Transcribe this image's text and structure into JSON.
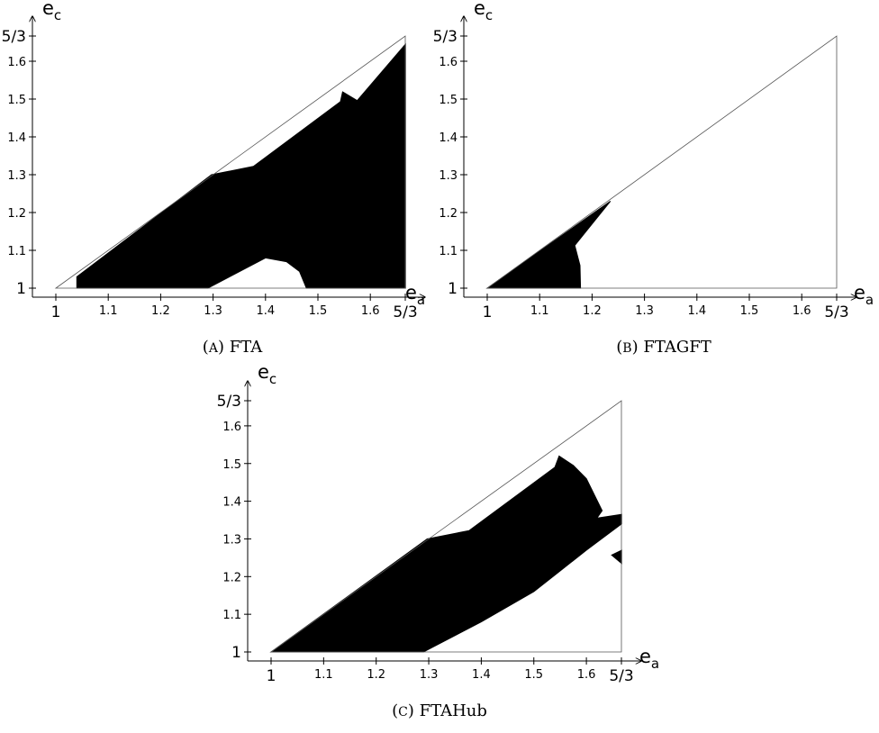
{
  "panels": [
    {
      "caption_letter": "A",
      "caption_name": "FTA",
      "x_axis_label": "e",
      "x_axis_sub": "a",
      "y_axis_label": "e",
      "y_axis_sub": "c",
      "x_ticks": [
        "1",
        "1.1",
        "1.2",
        "1.3",
        "1.4",
        "1.5",
        "1.6",
        "5/3"
      ],
      "y_ticks": [
        "1",
        "1.1",
        "1.2",
        "1.3",
        "1.4",
        "1.5",
        "1.6",
        "5/3"
      ],
      "regions": [
        [
          [
            1.04,
            1.0
          ],
          [
            1.04,
            1.03
          ],
          [
            1.297,
            1.3
          ],
          [
            1.377,
            1.322
          ],
          [
            1.543,
            1.493
          ],
          [
            1.547,
            1.519
          ],
          [
            1.575,
            1.496
          ],
          [
            1.667,
            1.645
          ],
          [
            1.667,
            1.0
          ],
          [
            1.478,
            1.0
          ],
          [
            1.465,
            1.044
          ],
          [
            1.44,
            1.07
          ],
          [
            1.4,
            1.08
          ],
          [
            1.29,
            1.0
          ]
        ]
      ]
    },
    {
      "caption_letter": "B",
      "caption_name": "FTAGFT",
      "x_axis_label": "e",
      "x_axis_sub": "a",
      "y_axis_label": "e",
      "y_axis_sub": "c",
      "x_ticks": [
        "1",
        "1.1",
        "1.2",
        "1.3",
        "1.4",
        "1.5",
        "1.6",
        "5/3"
      ],
      "y_ticks": [
        "1",
        "1.1",
        "1.2",
        "1.3",
        "1.4",
        "1.5",
        "1.6",
        "5/3"
      ],
      "regions": [
        [
          [
            1.0,
            1.0
          ],
          [
            1.235,
            1.23
          ],
          [
            1.167,
            1.113
          ],
          [
            1.177,
            1.06
          ],
          [
            1.178,
            1.0
          ]
        ]
      ]
    },
    {
      "caption_letter": "C",
      "caption_name": "FTAHub",
      "x_axis_label": "e",
      "x_axis_sub": "a",
      "y_axis_label": "e",
      "y_axis_sub": "c",
      "x_ticks": [
        "1",
        "1.1",
        "1.2",
        "1.3",
        "1.4",
        "1.5",
        "1.6",
        "5/3"
      ],
      "y_ticks": [
        "1",
        "1.1",
        "1.2",
        "1.3",
        "1.4",
        "1.5",
        "1.6",
        "5/3"
      ],
      "regions": [
        [
          [
            1.0,
            1.0
          ],
          [
            1.297,
            1.3
          ],
          [
            1.377,
            1.322
          ],
          [
            1.54,
            1.49
          ],
          [
            1.548,
            1.52
          ],
          [
            1.575,
            1.495
          ],
          [
            1.6,
            1.46
          ],
          [
            1.63,
            1.375
          ],
          [
            1.62,
            1.355
          ],
          [
            1.667,
            1.365
          ],
          [
            1.667,
            1.34
          ],
          [
            1.6,
            1.27
          ],
          [
            1.5,
            1.16
          ],
          [
            1.4,
            1.08
          ],
          [
            1.29,
            1.0
          ]
        ],
        [
          [
            1.648,
            1.257
          ],
          [
            1.667,
            1.27
          ],
          [
            1.667,
            1.235
          ]
        ]
      ]
    }
  ]
}
